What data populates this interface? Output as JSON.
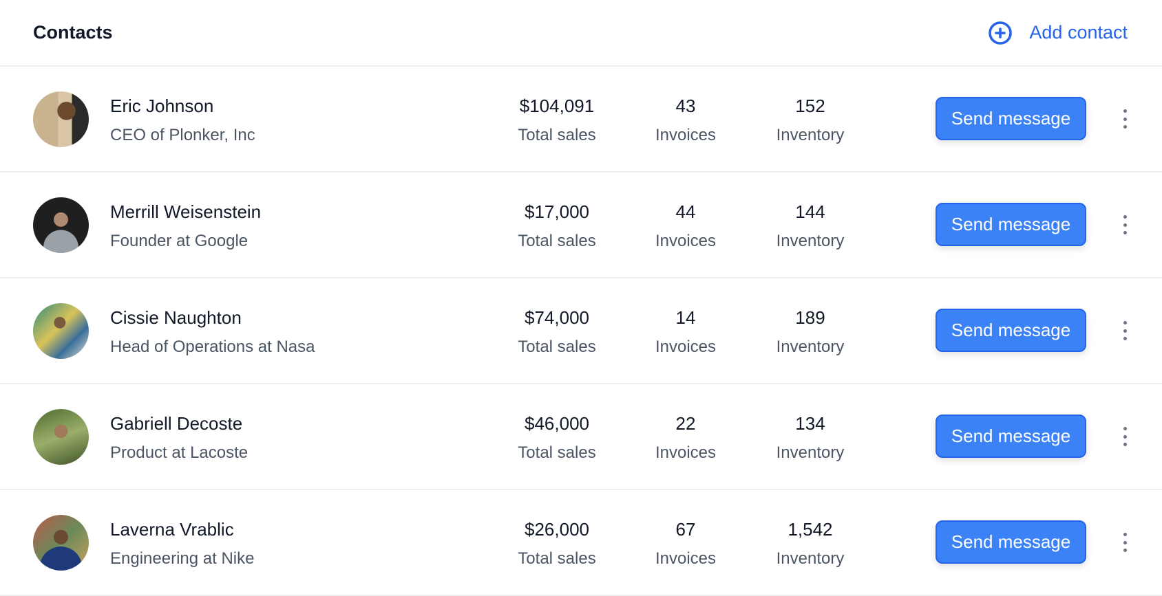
{
  "header": {
    "title": "Contacts",
    "add_label": "Add contact",
    "add_icon": "plus-circle-icon",
    "accent": "#2563eb"
  },
  "stat_labels": {
    "sales": "Total sales",
    "invoices": "Invoices",
    "inventory": "Inventory"
  },
  "button_label": "Send message",
  "contacts": [
    {
      "name": "Eric Johnson",
      "role": "CEO of Plonker, Inc",
      "sales": "$104,091",
      "invoices": "43",
      "inventory": "152"
    },
    {
      "name": "Merrill Weisenstein",
      "role": "Founder at Google",
      "sales": "$17,000",
      "invoices": "44",
      "inventory": "144"
    },
    {
      "name": "Cissie Naughton",
      "role": "Head of Operations at Nasa",
      "sales": "$74,000",
      "invoices": "14",
      "inventory": "189"
    },
    {
      "name": "Gabriell Decoste",
      "role": "Product at Lacoste",
      "sales": "$46,000",
      "invoices": "22",
      "inventory": "134"
    },
    {
      "name": "Laverna Vrablic",
      "role": "Engineering at Nike",
      "sales": "$26,000",
      "invoices": "67",
      "inventory": "1,542"
    }
  ]
}
